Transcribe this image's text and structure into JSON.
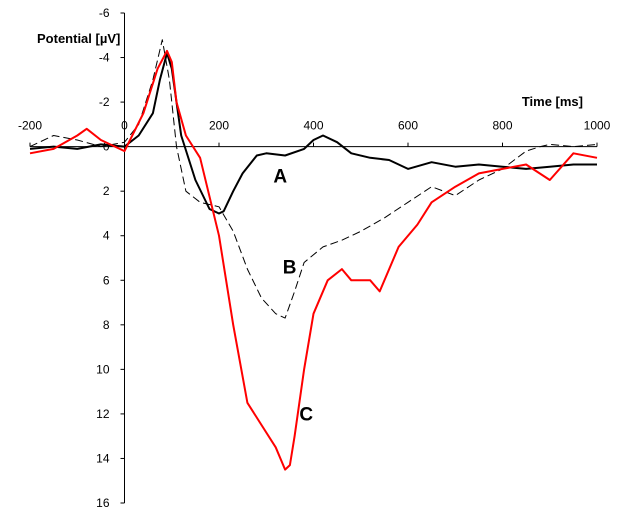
{
  "chart_data": {
    "type": "line",
    "title": "",
    "xlabel": "Time [ms]",
    "ylabel": "Potential [µV]",
    "xlim": [
      -200,
      1000
    ],
    "ylim": [
      -6,
      16
    ],
    "y_inverted": true,
    "x_ticks": [
      -200,
      0,
      200,
      400,
      600,
      800,
      1000
    ],
    "x_tick_labels": [
      "-200",
      "0",
      "200",
      "400",
      "600",
      "800",
      "1000"
    ],
    "y_ticks": [
      -6,
      -4,
      -2,
      0,
      2,
      4,
      6,
      8,
      10,
      12,
      14,
      16
    ],
    "y_tick_labels": [
      "-6",
      "-4",
      "-2",
      "0",
      "2",
      "4",
      "6",
      "8",
      "10",
      "12",
      "14",
      "16"
    ],
    "grid": false,
    "legend": "none",
    "series": [
      {
        "name": "A",
        "color": "#000000",
        "style": "solid",
        "x": [
          -200,
          -150,
          -100,
          -50,
          0,
          30,
          60,
          75,
          90,
          100,
          120,
          150,
          180,
          200,
          210,
          230,
          250,
          280,
          300,
          340,
          380,
          400,
          420,
          450,
          480,
          520,
          560,
          600,
          650,
          700,
          750,
          800,
          850,
          900,
          950,
          1000
        ],
        "y": [
          0.1,
          0,
          0.1,
          -0.1,
          0,
          -0.5,
          -1.5,
          -3,
          -4.2,
          -3.5,
          -0.5,
          1.5,
          2.8,
          3,
          2.9,
          2,
          1.2,
          0.4,
          0.3,
          0.4,
          0.1,
          -0.3,
          -0.5,
          -0.2,
          0.3,
          0.5,
          0.6,
          1,
          0.7,
          0.9,
          0.8,
          0.9,
          1,
          0.9,
          0.8,
          0.8
        ]
      },
      {
        "name": "B",
        "color": "#000000",
        "style": "dashed",
        "x": [
          -200,
          -150,
          -100,
          -50,
          0,
          30,
          60,
          80,
          95,
          110,
          130,
          160,
          200,
          230,
          260,
          290,
          320,
          340,
          360,
          380,
          420,
          460,
          500,
          550,
          600,
          650,
          700,
          750,
          800,
          850,
          880,
          900,
          950,
          1000
        ],
        "y": [
          0,
          -0.5,
          -0.3,
          0,
          -0.2,
          -1,
          -3,
          -4.8,
          -3,
          0,
          2,
          2.5,
          2.7,
          3.8,
          5.5,
          6.8,
          7.5,
          7.7,
          6.5,
          5.2,
          4.5,
          4.2,
          3.8,
          3.2,
          2.5,
          1.8,
          2.2,
          1.5,
          1,
          0.2,
          0,
          -0.1,
          0,
          -0.1
        ]
      },
      {
        "name": "C",
        "color": "#ff0000",
        "style": "solid",
        "x": [
          -200,
          -150,
          -100,
          -80,
          -50,
          0,
          40,
          70,
          90,
          100,
          110,
          130,
          160,
          200,
          230,
          260,
          290,
          320,
          340,
          350,
          360,
          380,
          400,
          430,
          460,
          480,
          520,
          540,
          580,
          620,
          650,
          700,
          750,
          800,
          850,
          900,
          950,
          1000
        ],
        "y": [
          0.3,
          0.1,
          -0.5,
          -0.8,
          -0.3,
          0.2,
          -1.5,
          -3.5,
          -4.3,
          -3.8,
          -2,
          -0.5,
          0.5,
          4,
          8,
          11.5,
          12.5,
          13.5,
          14.5,
          14.3,
          13,
          10,
          7.5,
          6,
          5.5,
          6,
          6,
          6.5,
          4.5,
          3.5,
          2.5,
          1.8,
          1.2,
          1,
          0.8,
          1.5,
          0.3,
          0.5
        ]
      }
    ],
    "annotations": [
      {
        "text": "A",
        "x": 315,
        "y": 1.6
      },
      {
        "text": "B",
        "x": 335,
        "y": 5.7
      },
      {
        "text": "C",
        "x": 370,
        "y": 12.3
      }
    ]
  }
}
